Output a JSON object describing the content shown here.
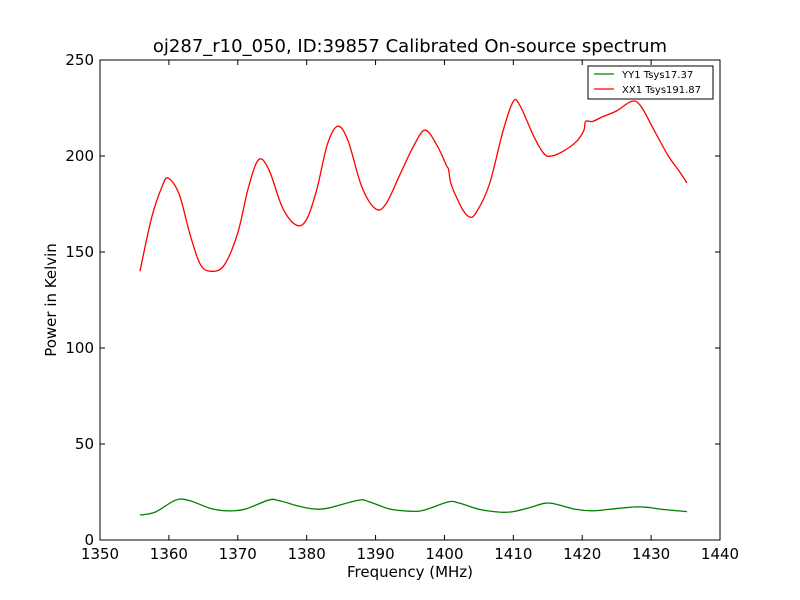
{
  "chart_data": {
    "type": "line",
    "title": "oj287_r10_050, ID:39857 Calibrated On-source spectrum",
    "xlabel": "Frequency (MHz)",
    "ylabel": "Power in Kelvin",
    "xlim": [
      1350,
      1440
    ],
    "ylim": [
      0,
      250
    ],
    "xticks": [
      1350,
      1360,
      1370,
      1380,
      1390,
      1400,
      1410,
      1420,
      1430,
      1440
    ],
    "yticks": [
      0,
      50,
      100,
      150,
      200,
      250
    ],
    "grid": false,
    "legend_position": "top-right",
    "series": [
      {
        "name": "YY1 Tsys17.37",
        "color": "#008000",
        "points": [
          [
            1355.8,
            13
          ],
          [
            1358,
            14.5
          ],
          [
            1361,
            20.8
          ],
          [
            1363,
            20.5
          ],
          [
            1366,
            16.5
          ],
          [
            1368.5,
            15.2
          ],
          [
            1371,
            16
          ],
          [
            1374.5,
            20.8
          ],
          [
            1376,
            20.5
          ],
          [
            1379,
            17.5
          ],
          [
            1381,
            16.2
          ],
          [
            1383,
            16.5
          ],
          [
            1387.5,
            20.7
          ],
          [
            1389,
            20
          ],
          [
            1392,
            16.2
          ],
          [
            1395,
            15
          ],
          [
            1397,
            15.5
          ],
          [
            1400.5,
            19.8
          ],
          [
            1402,
            19.4
          ],
          [
            1405,
            16
          ],
          [
            1408,
            14.5
          ],
          [
            1410,
            14.8
          ],
          [
            1412.5,
            17
          ],
          [
            1414.5,
            19.1
          ],
          [
            1416,
            18.8
          ],
          [
            1419,
            16
          ],
          [
            1421.5,
            15.2
          ],
          [
            1424,
            16
          ],
          [
            1427.5,
            17.2
          ],
          [
            1429.5,
            17
          ],
          [
            1432,
            15.8
          ],
          [
            1435.2,
            14.8
          ]
        ]
      },
      {
        "name": "XX1 Tsys191.87",
        "color": "#ff0000",
        "points": [
          [
            1355.8,
            140
          ],
          [
            1357.5,
            168
          ],
          [
            1359,
            184
          ],
          [
            1359.9,
            188.5
          ],
          [
            1361.5,
            180
          ],
          [
            1363,
            160
          ],
          [
            1364.5,
            144
          ],
          [
            1366,
            140
          ],
          [
            1368,
            143
          ],
          [
            1370,
            160
          ],
          [
            1371.5,
            183
          ],
          [
            1373,
            198
          ],
          [
            1374.5,
            193
          ],
          [
            1376.5,
            173
          ],
          [
            1378.5,
            164
          ],
          [
            1380,
            167
          ],
          [
            1381.5,
            183
          ],
          [
            1383,
            206
          ],
          [
            1384.5,
            215.5
          ],
          [
            1386,
            208
          ],
          [
            1388,
            184
          ],
          [
            1390,
            172.5
          ],
          [
            1391.5,
            175
          ],
          [
            1393.5,
            190
          ],
          [
            1395.5,
            205
          ],
          [
            1397.2,
            213.5
          ],
          [
            1399,
            205
          ],
          [
            1400.3,
            195
          ],
          [
            1400.6,
            193
          ],
          [
            1401,
            185
          ],
          [
            1402.5,
            173
          ],
          [
            1403.5,
            168.5
          ],
          [
            1404.5,
            170
          ],
          [
            1406.5,
            185
          ],
          [
            1408.5,
            213
          ],
          [
            1410,
            228.5
          ],
          [
            1411,
            226
          ],
          [
            1413,
            210
          ],
          [
            1414.5,
            201
          ],
          [
            1415.5,
            200
          ],
          [
            1417,
            202
          ],
          [
            1419,
            207
          ],
          [
            1420.2,
            213
          ],
          [
            1420.5,
            218
          ],
          [
            1421.5,
            218
          ],
          [
            1423,
            220.5
          ],
          [
            1425,
            223.5
          ],
          [
            1427.2,
            228.5
          ],
          [
            1428.5,
            226
          ],
          [
            1430.5,
            213
          ],
          [
            1432.5,
            200
          ],
          [
            1434,
            192.5
          ],
          [
            1435.2,
            186
          ]
        ]
      }
    ]
  }
}
